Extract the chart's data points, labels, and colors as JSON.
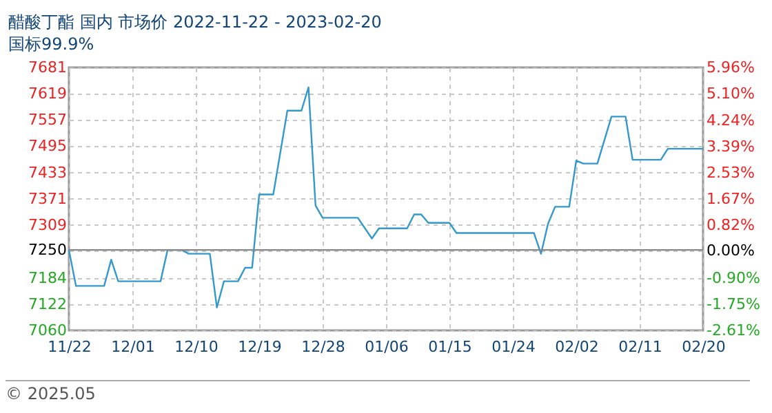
{
  "chart_data": {
    "type": "line",
    "title": "醋酸丁酯 国内 市场价 2022-11-22 - 2023-02-20",
    "subtitle": "国标99.9%",
    "annotations": [
      "© 2025.05"
    ],
    "x": [
      "2022-11-22",
      "2022-11-23",
      "2022-11-27",
      "2022-11-28",
      "2022-11-29",
      "2022-12-05",
      "2022-12-06",
      "2022-12-08",
      "2022-12-09",
      "2022-12-12",
      "2022-12-13",
      "2022-12-14",
      "2022-12-16",
      "2022-12-17",
      "2022-12-18",
      "2022-12-19",
      "2022-12-21",
      "2022-12-23",
      "2022-12-25",
      "2022-12-26",
      "2022-12-27",
      "2022-12-28",
      "2023-01-02",
      "2023-01-04",
      "2023-01-05",
      "2023-01-09",
      "2023-01-10",
      "2023-01-11",
      "2023-01-12",
      "2023-01-15",
      "2023-01-16",
      "2023-01-27",
      "2023-01-28",
      "2023-01-29",
      "2023-01-30",
      "2023-02-01",
      "2023-02-02",
      "2023-02-03",
      "2023-02-05",
      "2023-02-07",
      "2023-02-09",
      "2023-02-10",
      "2023-02-14",
      "2023-02-15",
      "2023-02-20"
    ],
    "series": [
      {
        "color": "#3399cc",
        "values": [
          7250,
          7165,
          7165,
          7227,
          7176,
          7176,
          7250,
          7250,
          7241,
          7241,
          7114,
          7176,
          7176,
          7208,
          7208,
          7381,
          7381,
          7579,
          7579,
          7634,
          7355,
          7326,
          7326,
          7277,
          7301,
          7301,
          7334,
          7334,
          7314,
          7314,
          7290,
          7290,
          7241,
          7312,
          7352,
          7352,
          7461,
          7454,
          7454,
          7565,
          7565,
          7463,
          7463,
          7489,
          7489
        ]
      }
    ],
    "xlim": [
      "2022-11-22",
      "2023-02-20"
    ],
    "xticks": [
      {
        "value": "2022-11-22",
        "label": "11/22"
      },
      {
        "value": "2022-12-01",
        "label": "12/01"
      },
      {
        "value": "2022-12-10",
        "label": "12/10"
      },
      {
        "value": "2022-12-19",
        "label": "12/19"
      },
      {
        "value": "2022-12-28",
        "label": "12/28"
      },
      {
        "value": "2023-01-06",
        "label": "01/06"
      },
      {
        "value": "2023-01-15",
        "label": "01/15"
      },
      {
        "value": "2023-01-24",
        "label": "01/24"
      },
      {
        "value": "2023-02-02",
        "label": "02/02"
      },
      {
        "value": "2023-02-11",
        "label": "02/11"
      },
      {
        "value": "2023-02-20",
        "label": "02/20"
      }
    ],
    "ylim": [
      7060,
      7681
    ],
    "yticks": [
      7060,
      7122,
      7184,
      7250,
      7309,
      7371,
      7433,
      7495,
      7557,
      7619,
      7681
    ],
    "y2lim": [
      -2.61,
      5.96
    ],
    "y2ticks": [
      {
        "value": -2.61,
        "label": "-2.61%"
      },
      {
        "value": -1.75,
        "label": "-1.75%"
      },
      {
        "value": -0.9,
        "label": "-0.90%"
      },
      {
        "value": 0,
        "label": "0.00%"
      },
      {
        "value": 0.82,
        "label": "0.82%"
      },
      {
        "value": 1.67,
        "label": "1.67%"
      },
      {
        "value": 2.53,
        "label": "2.53%"
      },
      {
        "value": 3.39,
        "label": "3.39%"
      },
      {
        "value": 4.24,
        "label": "4.24%"
      },
      {
        "value": 5.1,
        "label": "5.10%"
      },
      {
        "value": 5.96,
        "label": "5.96%"
      }
    ],
    "ref_lines": [
      {
        "axis": "y",
        "value": 7250,
        "color": "#888888"
      }
    ],
    "grid": true
  }
}
